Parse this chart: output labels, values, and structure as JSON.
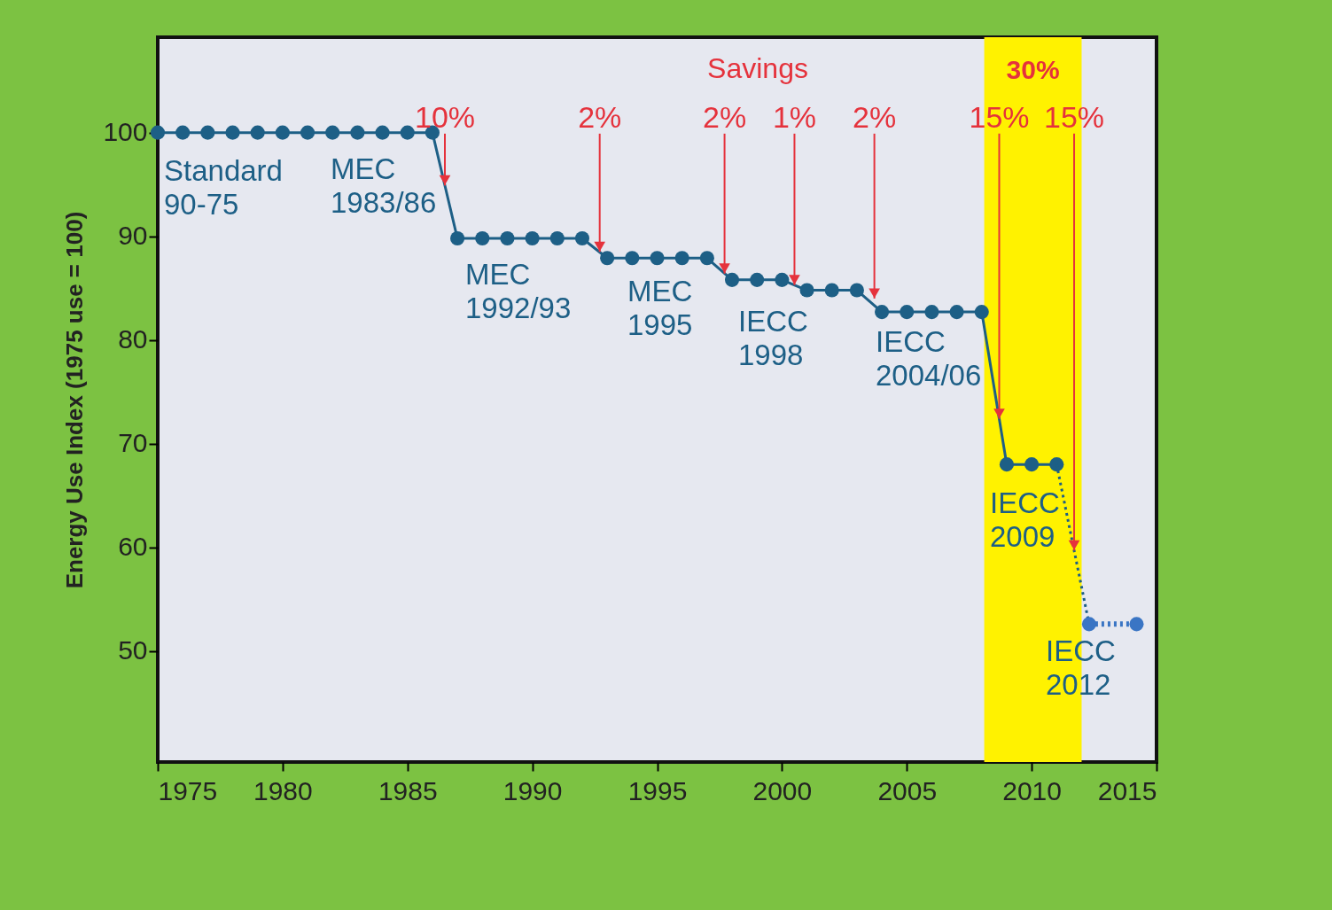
{
  "chart_data": {
    "type": "line",
    "ylabel": "Energy Use Index (1975 use = 100)",
    "xlim": [
      1975,
      2015
    ],
    "ylim": [
      39.3,
      109.2
    ],
    "xticks": [
      1975,
      1980,
      1985,
      1990,
      1995,
      2000,
      2005,
      2010,
      2015
    ],
    "yticks": [
      50,
      60,
      70,
      80,
      90,
      100
    ],
    "grid": false,
    "legend": false,
    "series": [
      {
        "color": "#1d5f86",
        "marker": "circle",
        "line_style": "solid",
        "x": [
          1975,
          1976,
          1977,
          1978,
          1979,
          1980,
          1981,
          1982,
          1983,
          1984,
          1985,
          1986,
          1987,
          1988,
          1989,
          1990,
          1991,
          1992,
          1993,
          1994,
          1995,
          1996,
          1997,
          1998,
          1999,
          2000,
          2001,
          2002,
          2003,
          2004,
          2005,
          2006,
          2007,
          2008,
          2009,
          2010,
          2011
        ],
        "values": [
          100,
          100,
          100,
          100,
          100,
          100,
          100,
          100,
          100,
          100,
          100,
          100,
          89.8,
          89.8,
          89.8,
          89.8,
          89.8,
          89.8,
          87.9,
          87.9,
          87.9,
          87.9,
          87.9,
          85.8,
          85.8,
          85.8,
          84.8,
          84.8,
          84.8,
          82.7,
          82.7,
          82.7,
          82.7,
          82.7,
          68.0,
          68.0,
          68.0
        ]
      },
      {
        "color": "#1d5f86",
        "marker": "none",
        "line_style": "dotted",
        "x": [
          2011,
          2012.3
        ],
        "values": [
          68.0,
          52.6
        ]
      },
      {
        "color": "#3a75c4",
        "marker": "circle",
        "line_style": "dotted",
        "x": [
          2012.3,
          2014.2
        ],
        "values": [
          52.6,
          52.6
        ]
      }
    ],
    "bands": [
      {
        "axis": "x",
        "from": 2008.1,
        "to": 2012.0,
        "label": "30%",
        "color": "#fff200"
      }
    ],
    "annotations": [
      "Savings",
      "Standard\n90-75",
      "MEC\n1983/86",
      "MEC\n1992/93",
      "MEC\n1995",
      "IECC\n1998",
      "IECC\n2004/06",
      "IECC\n2009",
      "IECC\n2012",
      {
        "text": "10%",
        "x": 1986.5,
        "y": 94.9
      },
      {
        "text": "2%",
        "x": 1992.7,
        "y": 88.5
      },
      {
        "text": "2%",
        "x": 1997.7,
        "y": 86.4
      },
      {
        "text": "1%",
        "x": 2000.5,
        "y": 85.3
      },
      {
        "text": "2%",
        "x": 2003.7,
        "y": 84.0
      },
      {
        "text": "15%",
        "x": 2008.7,
        "y": 72.4
      },
      {
        "text": "15%",
        "x": 2011.7,
        "y": 59.7
      }
    ]
  }
}
